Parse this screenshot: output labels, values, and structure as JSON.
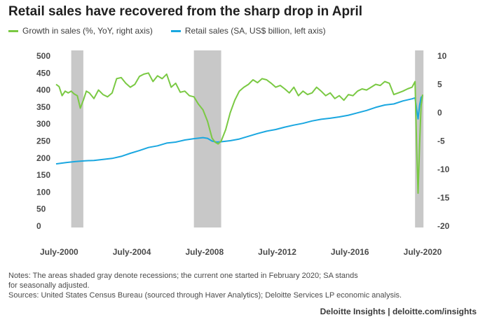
{
  "chart_data": {
    "type": "line",
    "title": "Retail sales have recovered from the sharp drop in April",
    "xlabel": "",
    "x_ticks": [
      "July-2000",
      "July-2004",
      "July-2008",
      "July-2012",
      "July-2016",
      "July-2020"
    ],
    "x_range": [
      "2000-05",
      "2020-07"
    ],
    "left_axis": {
      "ylim": [
        0,
        500
      ],
      "ticks": [
        0,
        50,
        100,
        150,
        200,
        250,
        300,
        350,
        400,
        450,
        500
      ]
    },
    "right_axis": {
      "ylim": [
        -20,
        10
      ],
      "ticks": [
        -20,
        -15,
        -10,
        -5,
        0,
        5,
        10
      ]
    },
    "grid": false,
    "legend_position": "top-left",
    "recessions": [
      {
        "start": "2001-03",
        "end": "2001-11"
      },
      {
        "start": "2007-12",
        "end": "2009-06"
      },
      {
        "start": "2020-02",
        "end": "2020-07"
      }
    ],
    "series": [
      {
        "name": "Retail sales (SA, US$ billion, left axis)",
        "axis": "left",
        "color": "#1aa7e0",
        "points": [
          [
            "2000-05",
            183
          ],
          [
            "2000-12",
            187
          ],
          [
            "2001-06",
            190
          ],
          [
            "2001-12",
            192
          ],
          [
            "2002-06",
            193
          ],
          [
            "2002-12",
            196
          ],
          [
            "2003-06",
            199
          ],
          [
            "2003-12",
            205
          ],
          [
            "2004-06",
            214
          ],
          [
            "2004-12",
            222
          ],
          [
            "2005-06",
            231
          ],
          [
            "2005-12",
            236
          ],
          [
            "2006-06",
            244
          ],
          [
            "2006-12",
            247
          ],
          [
            "2007-06",
            253
          ],
          [
            "2007-12",
            257
          ],
          [
            "2008-06",
            260
          ],
          [
            "2008-09",
            258
          ],
          [
            "2008-12",
            250
          ],
          [
            "2009-03",
            247
          ],
          [
            "2009-06",
            248
          ],
          [
            "2009-12",
            251
          ],
          [
            "2010-06",
            256
          ],
          [
            "2010-12",
            264
          ],
          [
            "2011-06",
            272
          ],
          [
            "2011-12",
            279
          ],
          [
            "2012-06",
            284
          ],
          [
            "2012-12",
            291
          ],
          [
            "2013-06",
            297
          ],
          [
            "2013-12",
            302
          ],
          [
            "2014-06",
            309
          ],
          [
            "2014-12",
            314
          ],
          [
            "2015-06",
            317
          ],
          [
            "2015-12",
            321
          ],
          [
            "2016-06",
            326
          ],
          [
            "2016-12",
            333
          ],
          [
            "2017-06",
            340
          ],
          [
            "2017-12",
            349
          ],
          [
            "2018-06",
            356
          ],
          [
            "2018-12",
            359
          ],
          [
            "2019-06",
            368
          ],
          [
            "2019-12",
            374
          ],
          [
            "2020-02",
            377
          ],
          [
            "2020-03",
            345
          ],
          [
            "2020-04",
            315
          ],
          [
            "2020-05",
            355
          ],
          [
            "2020-06",
            378
          ],
          [
            "2020-07",
            383
          ]
        ]
      },
      {
        "name": "Growth in sales (%, YoY, right axis)",
        "axis": "right",
        "color": "#7ac943",
        "points": [
          [
            "2000-05",
            5.0
          ],
          [
            "2000-07",
            4.6
          ],
          [
            "2000-09",
            3.0
          ],
          [
            "2000-11",
            3.8
          ],
          [
            "2001-01",
            3.5
          ],
          [
            "2001-03",
            3.8
          ],
          [
            "2001-05",
            3.3
          ],
          [
            "2001-07",
            3.0
          ],
          [
            "2001-09",
            0.8
          ],
          [
            "2001-11",
            2.2
          ],
          [
            "2002-01",
            3.8
          ],
          [
            "2002-03",
            3.5
          ],
          [
            "2002-06",
            2.5
          ],
          [
            "2002-09",
            4.0
          ],
          [
            "2002-12",
            3.2
          ],
          [
            "2003-03",
            2.8
          ],
          [
            "2003-06",
            3.5
          ],
          [
            "2003-09",
            6.0
          ],
          [
            "2003-12",
            6.2
          ],
          [
            "2004-03",
            5.2
          ],
          [
            "2004-06",
            4.5
          ],
          [
            "2004-09",
            5.0
          ],
          [
            "2004-12",
            6.4
          ],
          [
            "2005-03",
            6.8
          ],
          [
            "2005-06",
            7.0
          ],
          [
            "2005-09",
            5.5
          ],
          [
            "2005-12",
            6.5
          ],
          [
            "2006-03",
            6.0
          ],
          [
            "2006-06",
            6.8
          ],
          [
            "2006-09",
            4.5
          ],
          [
            "2006-12",
            5.2
          ],
          [
            "2007-03",
            3.6
          ],
          [
            "2007-06",
            3.8
          ],
          [
            "2007-09",
            3.0
          ],
          [
            "2007-12",
            2.8
          ],
          [
            "2008-03",
            1.5
          ],
          [
            "2008-06",
            0.5
          ],
          [
            "2008-09",
            -1.5
          ],
          [
            "2008-12",
            -4.5
          ],
          [
            "2009-02",
            -5.2
          ],
          [
            "2009-04",
            -5.5
          ],
          [
            "2009-06",
            -5.0
          ],
          [
            "2009-09",
            -3.0
          ],
          [
            "2009-12",
            0.0
          ],
          [
            "2010-03",
            2.2
          ],
          [
            "2010-06",
            3.8
          ],
          [
            "2010-09",
            4.5
          ],
          [
            "2010-12",
            5.0
          ],
          [
            "2011-03",
            5.8
          ],
          [
            "2011-06",
            5.3
          ],
          [
            "2011-09",
            6.0
          ],
          [
            "2011-12",
            5.8
          ],
          [
            "2012-03",
            5.2
          ],
          [
            "2012-06",
            4.5
          ],
          [
            "2012-09",
            4.8
          ],
          [
            "2012-12",
            4.2
          ],
          [
            "2013-03",
            3.5
          ],
          [
            "2013-06",
            4.5
          ],
          [
            "2013-09",
            3.0
          ],
          [
            "2013-12",
            3.8
          ],
          [
            "2014-03",
            3.2
          ],
          [
            "2014-06",
            3.5
          ],
          [
            "2014-09",
            4.5
          ],
          [
            "2014-12",
            3.8
          ],
          [
            "2015-03",
            3.0
          ],
          [
            "2015-06",
            3.5
          ],
          [
            "2015-09",
            2.5
          ],
          [
            "2015-12",
            3.0
          ],
          [
            "2016-03",
            2.2
          ],
          [
            "2016-06",
            3.2
          ],
          [
            "2016-09",
            3.0
          ],
          [
            "2016-12",
            3.8
          ],
          [
            "2017-03",
            4.2
          ],
          [
            "2017-06",
            4.0
          ],
          [
            "2017-09",
            4.5
          ],
          [
            "2017-12",
            5.0
          ],
          [
            "2018-03",
            4.8
          ],
          [
            "2018-06",
            5.5
          ],
          [
            "2018-09",
            5.2
          ],
          [
            "2018-12",
            3.2
          ],
          [
            "2019-03",
            3.5
          ],
          [
            "2019-06",
            3.8
          ],
          [
            "2019-09",
            4.2
          ],
          [
            "2019-12",
            4.5
          ],
          [
            "2020-02",
            5.5
          ],
          [
            "2020-03",
            -5.8
          ],
          [
            "2020-04",
            -14.2
          ],
          [
            "2020-05",
            -5.5
          ],
          [
            "2020-06",
            1.2
          ],
          [
            "2020-07",
            3.2
          ]
        ]
      }
    ]
  },
  "notes": [
    "Notes: The areas shaded gray denote recessions; the current one started in February 2020; SA stands",
    "for seasonally adjusted.",
    "Sources: United States Census Bureau (sourced through Haver Analytics); Deloitte Services LP economic analysis."
  ],
  "credit": "Deloitte Insights | deloitte.com/insights",
  "colors": {
    "recession": "#c8c8c8",
    "axis_text": "#4a4a4a"
  }
}
